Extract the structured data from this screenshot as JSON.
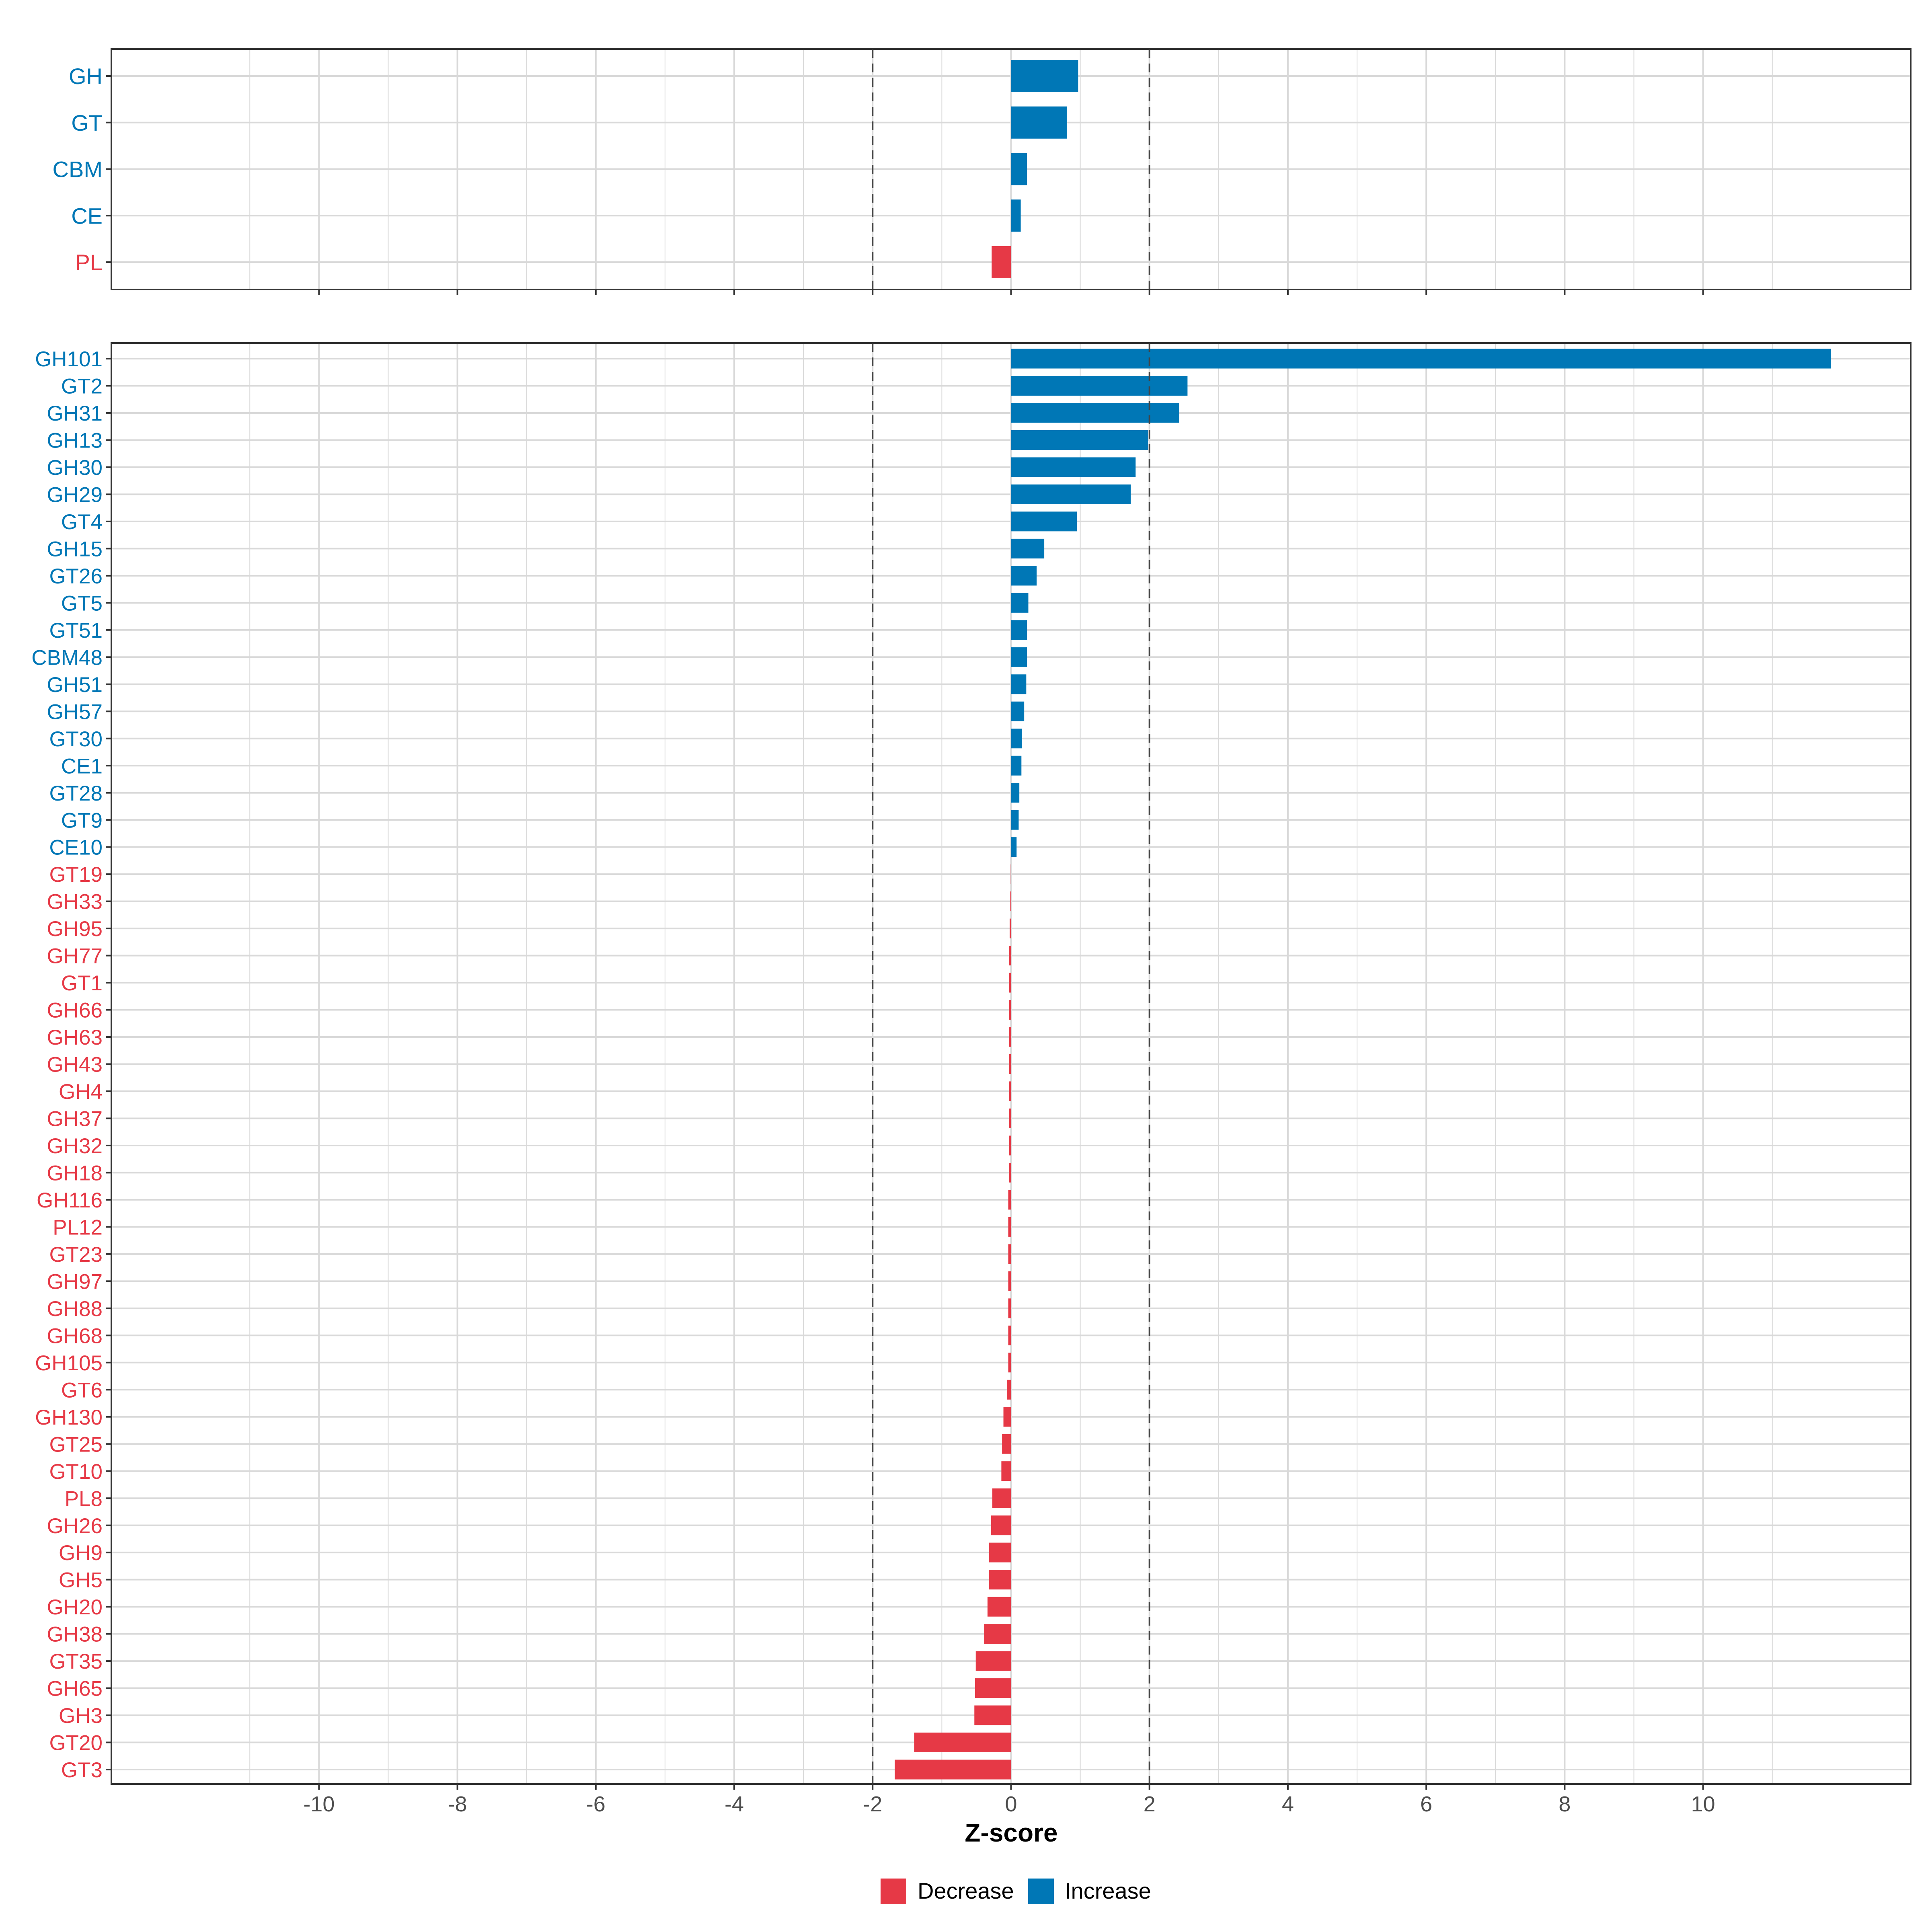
{
  "colors": {
    "decrease": "#E63946",
    "increase": "#0077B6",
    "grid": "#D9D9D9",
    "threshold": "#444444",
    "axis_text": "#4D4D4D"
  },
  "chart_data": [
    {
      "type": "bar",
      "orientation": "horizontal",
      "panel": "top",
      "categories": [
        "GH",
        "GT",
        "CBM",
        "CE",
        "PL"
      ],
      "values": [
        0.97,
        0.81,
        0.23,
        0.14,
        -0.28
      ],
      "direction": [
        "Increase",
        "Increase",
        "Increase",
        "Increase",
        "Decrease"
      ],
      "xlim": [
        -13,
        13
      ],
      "threshold_lines": [
        -2,
        2
      ]
    },
    {
      "type": "bar",
      "orientation": "horizontal",
      "panel": "bottom",
      "categories": [
        "GH101",
        "GT2",
        "GH31",
        "GH13",
        "GH30",
        "GH29",
        "GT4",
        "GH15",
        "GT26",
        "GT5",
        "GT51",
        "CBM48",
        "GH51",
        "GH57",
        "GT30",
        "CE1",
        "GT28",
        "GT9",
        "CE10",
        "GT19",
        "GH33",
        "GH95",
        "GH77",
        "GT1",
        "GH66",
        "GH63",
        "GH43",
        "GH4",
        "GH37",
        "GH32",
        "GH18",
        "GH116",
        "PL12",
        "GT23",
        "GH97",
        "GH88",
        "GH68",
        "GH105",
        "GT6",
        "GH130",
        "GT25",
        "GT10",
        "PL8",
        "GH26",
        "GH9",
        "GH5",
        "GH20",
        "GH38",
        "GT35",
        "GH65",
        "GH3",
        "GT20",
        "GT3"
      ],
      "values": [
        11.85,
        2.55,
        2.43,
        1.98,
        1.8,
        1.73,
        0.95,
        0.48,
        0.37,
        0.25,
        0.23,
        0.23,
        0.22,
        0.19,
        0.16,
        0.15,
        0.12,
        0.11,
        0.08,
        -0.005,
        -0.01,
        -0.02,
        -0.03,
        -0.03,
        -0.03,
        -0.03,
        -0.03,
        -0.03,
        -0.03,
        -0.03,
        -0.03,
        -0.04,
        -0.04,
        -0.04,
        -0.04,
        -0.04,
        -0.04,
        -0.04,
        -0.06,
        -0.11,
        -0.13,
        -0.14,
        -0.27,
        -0.29,
        -0.32,
        -0.32,
        -0.34,
        -0.39,
        -0.51,
        -0.52,
        -0.53,
        -1.4,
        -1.68
      ],
      "xlim": [
        -13,
        13
      ],
      "xticks": [
        -10,
        -8,
        -6,
        -4,
        -2,
        0,
        2,
        4,
        6,
        8,
        10
      ],
      "threshold_lines": [
        -2,
        2
      ],
      "xlabel": "Z-score"
    }
  ],
  "axis": {
    "tick_labels": [
      "-10",
      "-8",
      "-6",
      "-4",
      "-2",
      "0",
      "2",
      "4",
      "6",
      "8",
      "10"
    ]
  },
  "legend": {
    "items": [
      {
        "label": "Decrease",
        "color": "#E63946"
      },
      {
        "label": "Increase",
        "color": "#0077B6"
      }
    ]
  }
}
